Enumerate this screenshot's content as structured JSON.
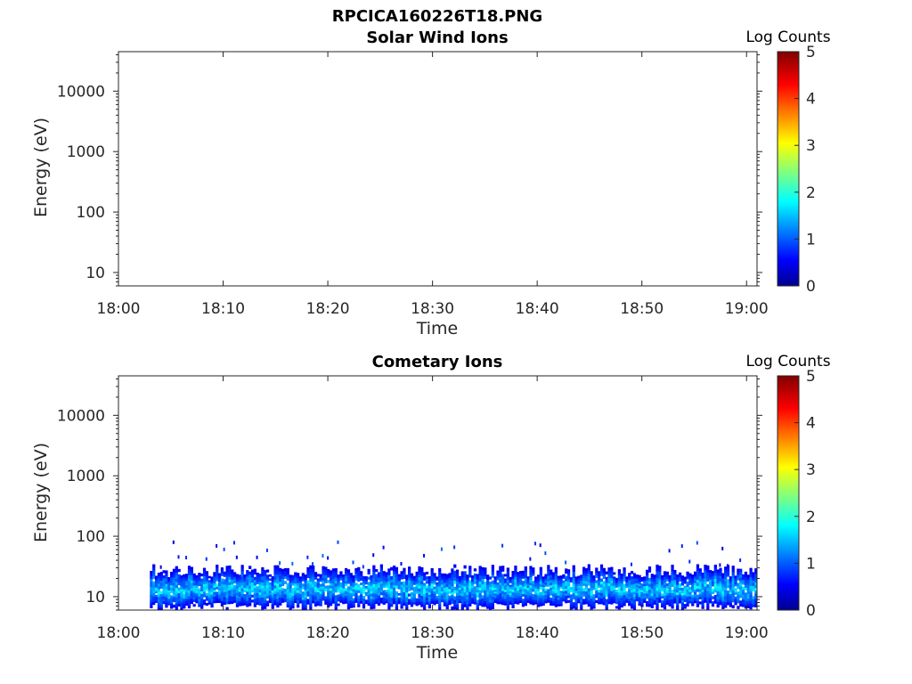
{
  "figure_title": "RPCICA160226T18.PNG",
  "colors": {
    "axis": "#262626",
    "background": "#ffffff",
    "colormap": [
      "#00008f",
      "#0000ff",
      "#00ffff",
      "#ffff00",
      "#ff0000",
      "#800000"
    ]
  },
  "chart_data": [
    {
      "type": "heatmap",
      "title": "Solar Wind Ions",
      "xlabel": "Time",
      "ylabel": "Energy (eV)",
      "y_scale": "log",
      "ylim": [
        6,
        45000
      ],
      "xlim": [
        "18:00",
        "19:01"
      ],
      "x_ticks": [
        "18:00",
        "18:10",
        "18:20",
        "18:30",
        "18:40",
        "18:50",
        "19:00"
      ],
      "y_ticks": [
        "10",
        "100",
        "1000",
        "10000"
      ],
      "y_tick_values": [
        10,
        100,
        1000,
        10000
      ],
      "colorbar": {
        "label": "Log Counts",
        "ticks": [
          "0",
          "1",
          "2",
          "3",
          "4",
          "5"
        ],
        "range": [
          0,
          5
        ]
      },
      "data": {
        "has_counts": false,
        "counts_start": "",
        "counts_end": "",
        "main_band_energy_range_eV": [],
        "typical_log_counts": []
      }
    },
    {
      "type": "heatmap",
      "title": "Cometary Ions",
      "xlabel": "Time",
      "ylabel": "Energy (eV)",
      "y_scale": "log",
      "ylim": [
        6,
        45000
      ],
      "xlim": [
        "18:00",
        "19:01"
      ],
      "x_ticks": [
        "18:00",
        "18:10",
        "18:20",
        "18:30",
        "18:40",
        "18:50",
        "19:00"
      ],
      "y_ticks": [
        "10",
        "100",
        "1000",
        "10000"
      ],
      "y_tick_values": [
        10,
        100,
        1000,
        10000
      ],
      "colorbar": {
        "label": "Log Counts",
        "ticks": [
          "0",
          "1",
          "2",
          "3",
          "4",
          "5"
        ],
        "range": [
          0,
          5
        ]
      },
      "data": {
        "has_counts": true,
        "counts_start": "18:03",
        "counts_end": "19:01",
        "main_band_energy_range_eV": [
          7,
          30
        ],
        "typical_log_counts": [
          0.5,
          2.0
        ],
        "sparse_counts_energy_range_eV": [
          30,
          80
        ]
      }
    }
  ]
}
